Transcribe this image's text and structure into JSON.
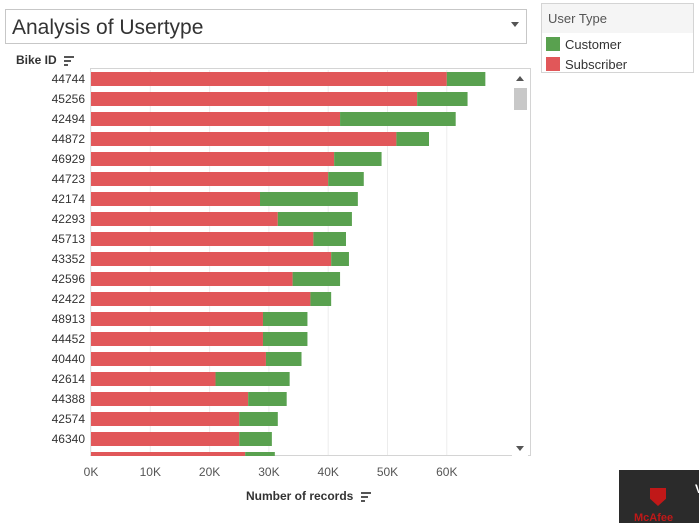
{
  "title": "Analysis of Usertype",
  "legend": {
    "title": "User Type",
    "items": [
      {
        "label": "Customer",
        "color": "#59a14f"
      },
      {
        "label": "Subscriber",
        "color": "#e15759"
      }
    ]
  },
  "chart_data": {
    "type": "bar",
    "orientation": "horizontal",
    "stacked": true,
    "row_header": "Bike ID",
    "xlabel": "Number of records",
    "xlim": [
      0,
      70000
    ],
    "xticks": [
      "0K",
      "10K",
      "20K",
      "30K",
      "40K",
      "50K",
      "60K"
    ],
    "categories": [
      "44744",
      "45256",
      "42494",
      "44872",
      "46929",
      "44723",
      "42174",
      "42293",
      "45713",
      "43352",
      "42596",
      "42422",
      "48913",
      "44452",
      "40440",
      "42614",
      "44388",
      "42574",
      "46340"
    ],
    "series": [
      {
        "name": "Subscriber",
        "color": "#e15759",
        "values": [
          60000,
          55000,
          42000,
          51500,
          41000,
          40000,
          28500,
          31500,
          37500,
          40500,
          34000,
          37000,
          29000,
          29000,
          29500,
          21000,
          26500,
          25000,
          25000
        ]
      },
      {
        "name": "Customer",
        "color": "#59a14f",
        "values": [
          6500,
          8500,
          19500,
          5500,
          8000,
          6000,
          16500,
          12500,
          5500,
          3000,
          8000,
          3500,
          7500,
          7500,
          6000,
          12500,
          6500,
          6500,
          5500
        ]
      }
    ]
  },
  "icons": {
    "row_sort": "sort-descending-icon",
    "axis_sort": "sort-descending-icon",
    "title_menu": "dropdown-arrow-icon"
  },
  "watermark": {
    "brand": "McAfee",
    "trailing": "V"
  }
}
